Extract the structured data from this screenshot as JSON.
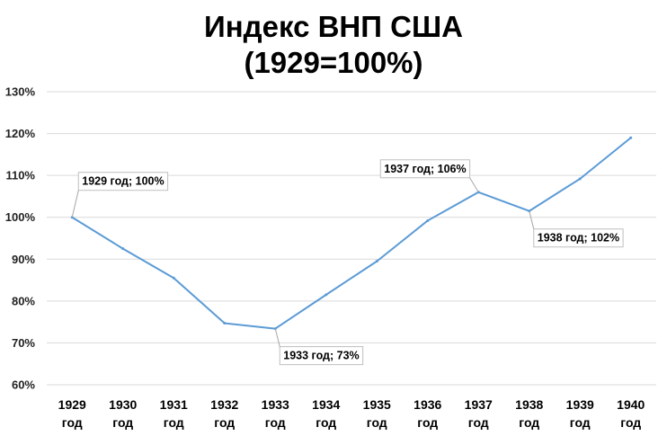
{
  "chart_data": {
    "type": "line",
    "title": "Индекс ВНП США",
    "subtitle": "(1929=100%)",
    "xlabel": "",
    "ylabel": "",
    "categories": [
      [
        "1929",
        "год"
      ],
      [
        "1930",
        "год"
      ],
      [
        "1931",
        "год"
      ],
      [
        "1932",
        "год"
      ],
      [
        "1933",
        "год"
      ],
      [
        "1934",
        "год"
      ],
      [
        "1935",
        "год"
      ],
      [
        "1936",
        "год"
      ],
      [
        "1937",
        "год"
      ],
      [
        "1938",
        "год"
      ],
      [
        "1939",
        "год"
      ],
      [
        "1940",
        "год"
      ]
    ],
    "series": [
      {
        "values": [
          100,
          92.5,
          85.5,
          74.7,
          73.4,
          81.5,
          89.5,
          99.2,
          106,
          101.5,
          109.2,
          119
        ]
      }
    ],
    "ylim": [
      60,
      130
    ],
    "yticks": [
      60,
      70,
      80,
      90,
      100,
      110,
      120,
      130
    ],
    "ytick_labels": [
      "60%",
      "70%",
      "80%",
      "90%",
      "100%",
      "110%",
      "120%",
      "130%"
    ],
    "grid": true,
    "legend": "none",
    "line_color": "#5b9bd5",
    "annotations": [
      {
        "index": 0,
        "text": "1929 год; 100%",
        "placement": "upper-right"
      },
      {
        "index": 4,
        "text": "1933 год; 73%",
        "placement": "lower-right"
      },
      {
        "index": 8,
        "text": "1937 год; 106%",
        "placement": "upper-left"
      },
      {
        "index": 9,
        "text": "1938 год; 102%",
        "placement": "lower-right"
      }
    ]
  }
}
